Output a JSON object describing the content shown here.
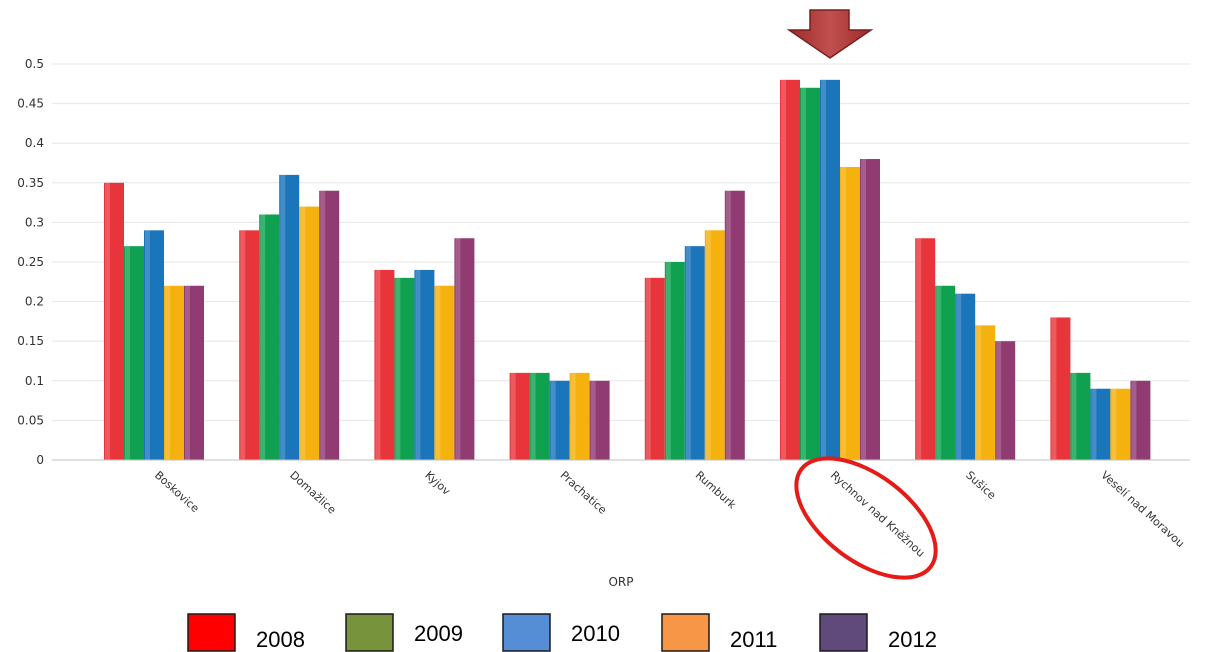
{
  "chart_data": {
    "type": "bar",
    "categories": [
      "Boskovice",
      "Domažlice",
      "Kyjov",
      "Prachatice",
      "Rumburk",
      "Rychnov nad Kněžnou",
      "Sušice",
      "Veselí nad Moravou"
    ],
    "series": [
      {
        "name": "2008",
        "values": [
          0.35,
          0.29,
          0.24,
          0.11,
          0.23,
          0.48,
          0.28,
          0.18
        ],
        "color": "#e8353b",
        "legend_color": "#ff0000"
      },
      {
        "name": "2009",
        "values": [
          0.27,
          0.31,
          0.23,
          0.11,
          0.25,
          0.47,
          0.22,
          0.11
        ],
        "color": "#10a150",
        "legend_color": "#77933c"
      },
      {
        "name": "2010",
        "values": [
          0.29,
          0.36,
          0.24,
          0.1,
          0.27,
          0.48,
          0.21,
          0.09
        ],
        "color": "#1b75bb",
        "legend_color": "#558ed5"
      },
      {
        "name": "2011",
        "values": [
          0.22,
          0.32,
          0.22,
          0.11,
          0.29,
          0.37,
          0.17,
          0.09
        ],
        "color": "#f5b10e",
        "legend_color": "#f79646"
      },
      {
        "name": "2012",
        "values": [
          0.22,
          0.34,
          0.28,
          0.1,
          0.34,
          0.38,
          0.15,
          0.1
        ],
        "color": "#913b73",
        "legend_color": "#604a7b"
      }
    ],
    "yticks": [
      "0",
      "0.05",
      "0.1",
      "0.15",
      "0.2",
      "0.25",
      "0.3",
      "0.35",
      "0.4",
      "0.45",
      "0.5"
    ],
    "ylim": [
      0,
      0.5
    ],
    "xlabel": "ORP",
    "ylabel": "",
    "grid": true,
    "legend_position": "bottom",
    "highlighted_category": "Rychnov nad Kněžnou",
    "annotations": [
      "down-arrow-above-highlighted",
      "red-ellipse-around-highlighted-label"
    ]
  }
}
